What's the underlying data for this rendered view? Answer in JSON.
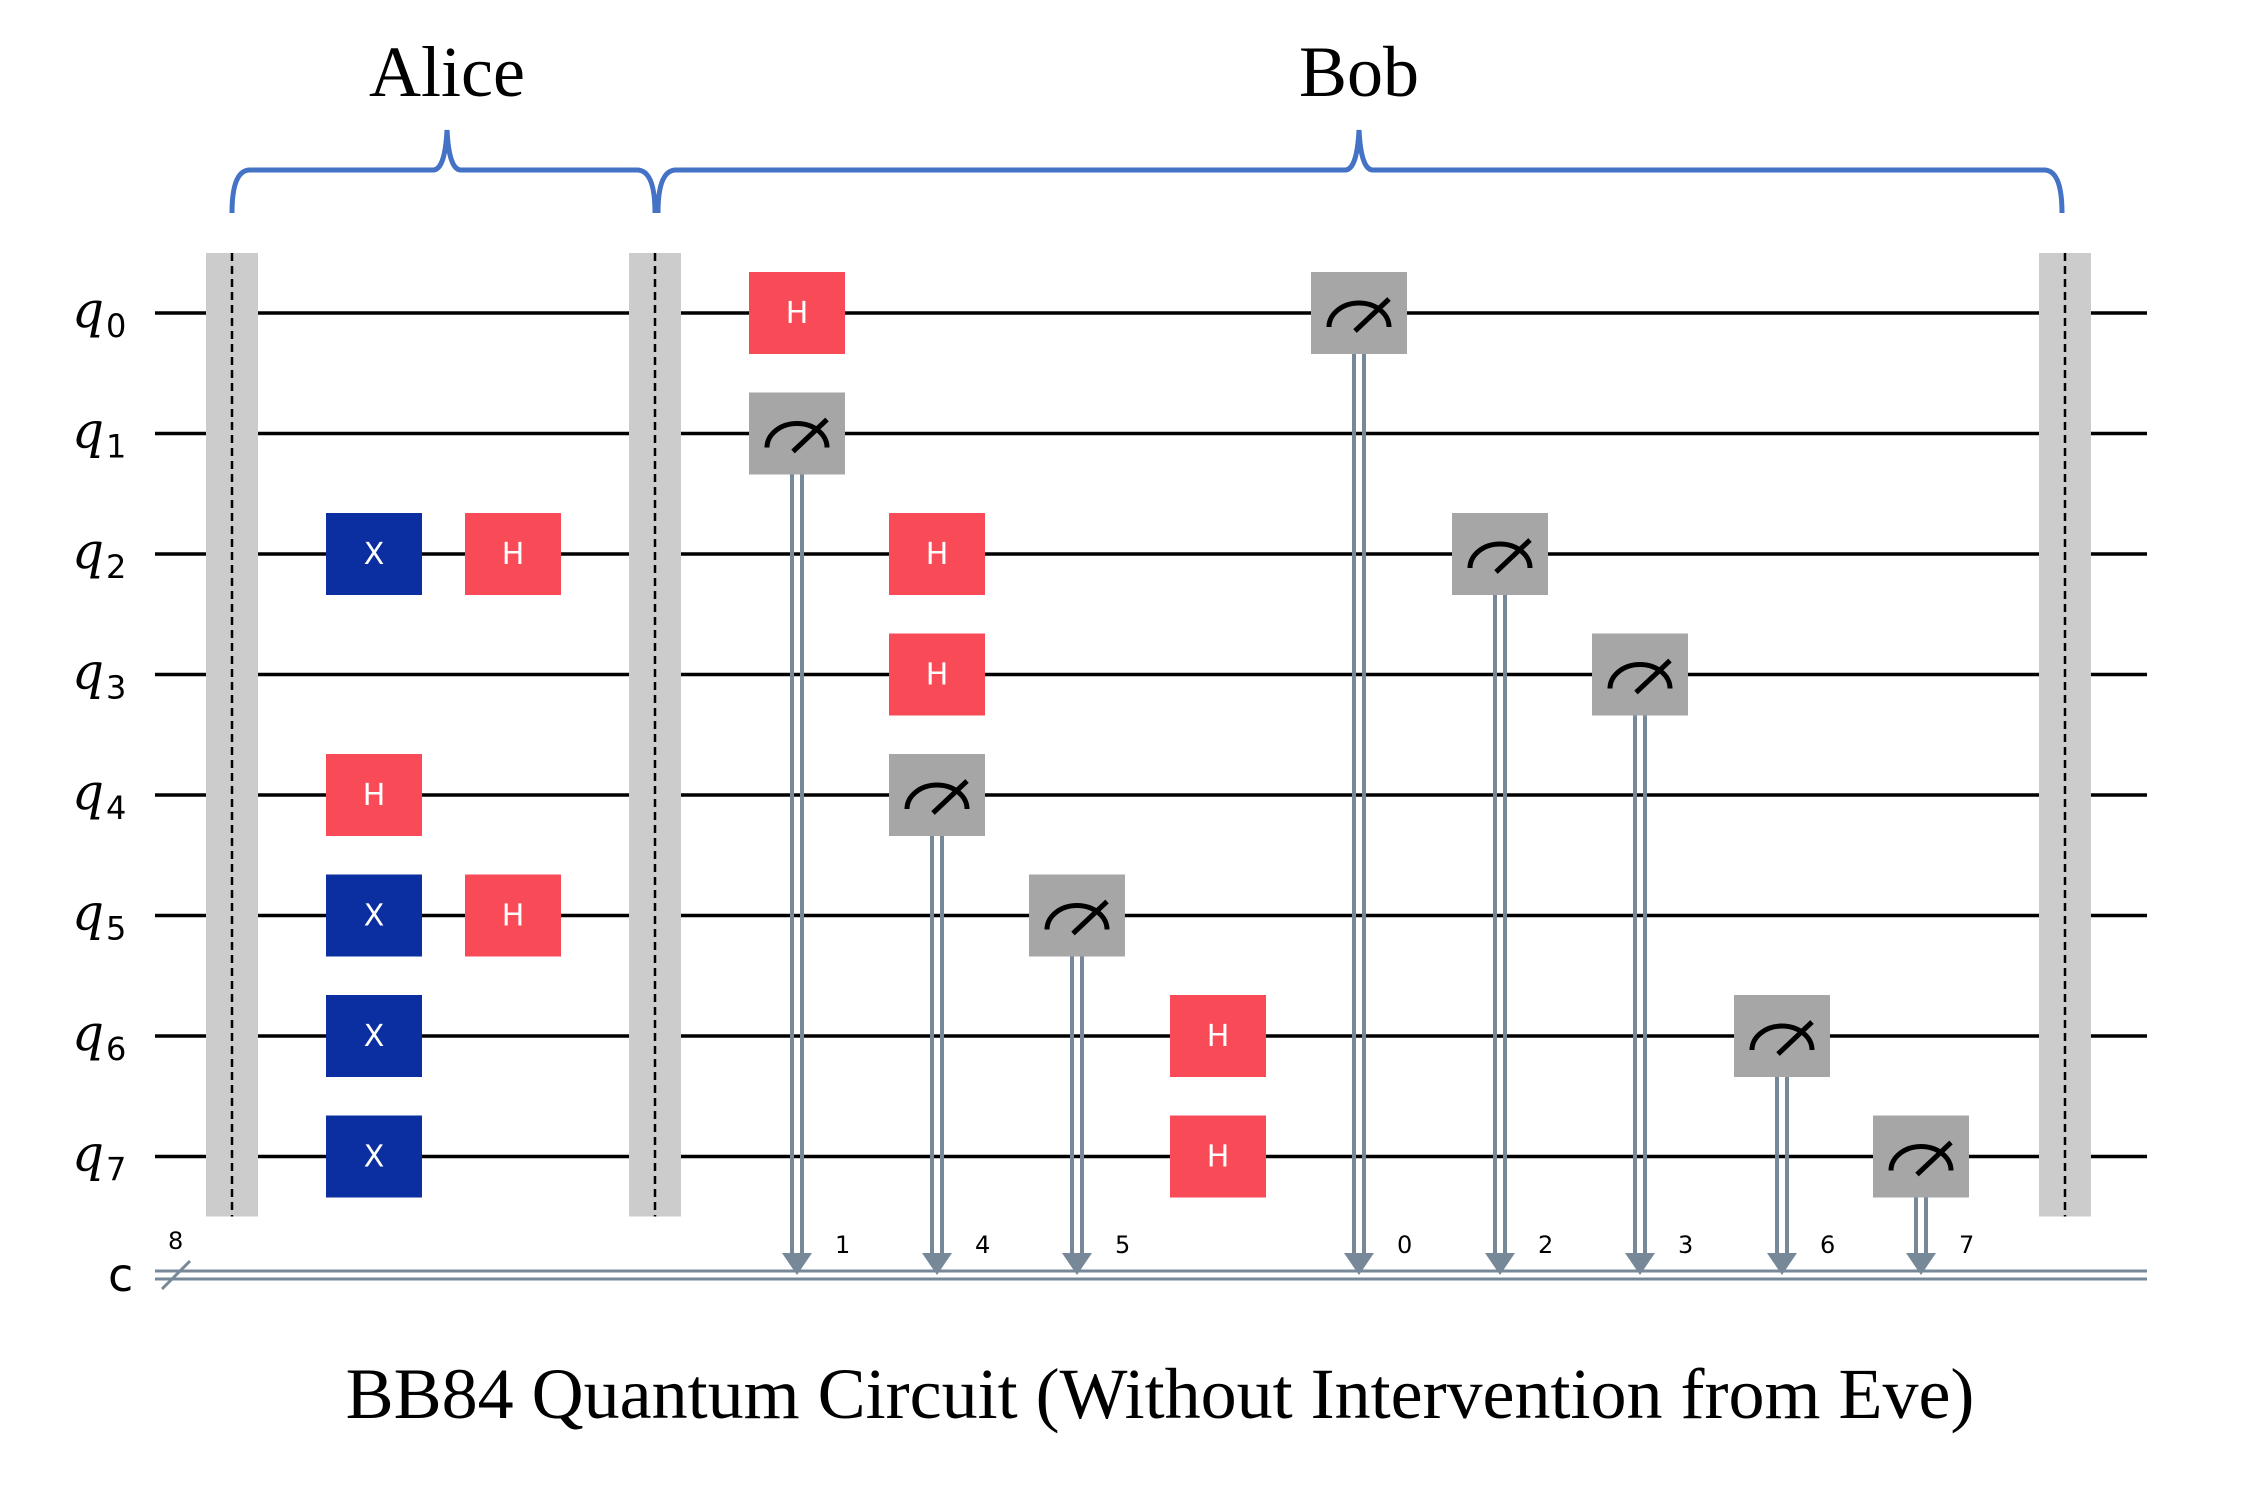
{
  "groups": {
    "alice": "Alice",
    "bob": "Bob"
  },
  "caption": "BB84 Quantum Circuit (Without Intervention from Eve)",
  "colors": {
    "hadamard": "#f94a57",
    "pauli_x": "#0b2fa0",
    "measure": "#a6a6a6",
    "barrier": "#cccccc",
    "brace": "#4472c4",
    "classical": "#778899"
  },
  "qubits": [
    {
      "base": "q",
      "index": "0"
    },
    {
      "base": "q",
      "index": "1"
    },
    {
      "base": "q",
      "index": "2"
    },
    {
      "base": "q",
      "index": "3"
    },
    {
      "base": "q",
      "index": "4"
    },
    {
      "base": "q",
      "index": "5"
    },
    {
      "base": "q",
      "index": "6"
    },
    {
      "base": "q",
      "index": "7"
    }
  ],
  "classical_register": {
    "name": "c",
    "width": "8"
  },
  "barriers": [
    0,
    1,
    2
  ],
  "gates": [
    {
      "type": "X",
      "label": "X",
      "qubit": 2,
      "column": 0
    },
    {
      "type": "H",
      "label": "H",
      "qubit": 2,
      "column": 1
    },
    {
      "type": "H",
      "label": "H",
      "qubit": 4,
      "column": 0
    },
    {
      "type": "X",
      "label": "X",
      "qubit": 5,
      "column": 0
    },
    {
      "type": "H",
      "label": "H",
      "qubit": 5,
      "column": 1
    },
    {
      "type": "X",
      "label": "X",
      "qubit": 6,
      "column": 0
    },
    {
      "type": "X",
      "label": "X",
      "qubit": 7,
      "column": 0
    },
    {
      "type": "H",
      "label": "H",
      "qubit": 0,
      "column": 2
    },
    {
      "type": "M",
      "qubit": 1,
      "column": 2,
      "cbit": "1"
    },
    {
      "type": "H",
      "label": "H",
      "qubit": 2,
      "column": 3
    },
    {
      "type": "H",
      "label": "H",
      "qubit": 3,
      "column": 3
    },
    {
      "type": "M",
      "qubit": 4,
      "column": 3,
      "cbit": "4"
    },
    {
      "type": "M",
      "qubit": 5,
      "column": 4,
      "cbit": "5"
    },
    {
      "type": "H",
      "label": "H",
      "qubit": 6,
      "column": 5
    },
    {
      "type": "H",
      "label": "H",
      "qubit": 7,
      "column": 5
    },
    {
      "type": "M",
      "qubit": 0,
      "column": 6,
      "cbit": "0"
    },
    {
      "type": "M",
      "qubit": 2,
      "column": 7,
      "cbit": "2"
    },
    {
      "type": "M",
      "qubit": 3,
      "column": 8,
      "cbit": "3"
    },
    {
      "type": "M",
      "qubit": 6,
      "column": 9,
      "cbit": "6"
    },
    {
      "type": "M",
      "qubit": 7,
      "column": 10,
      "cbit": "7"
    }
  ]
}
